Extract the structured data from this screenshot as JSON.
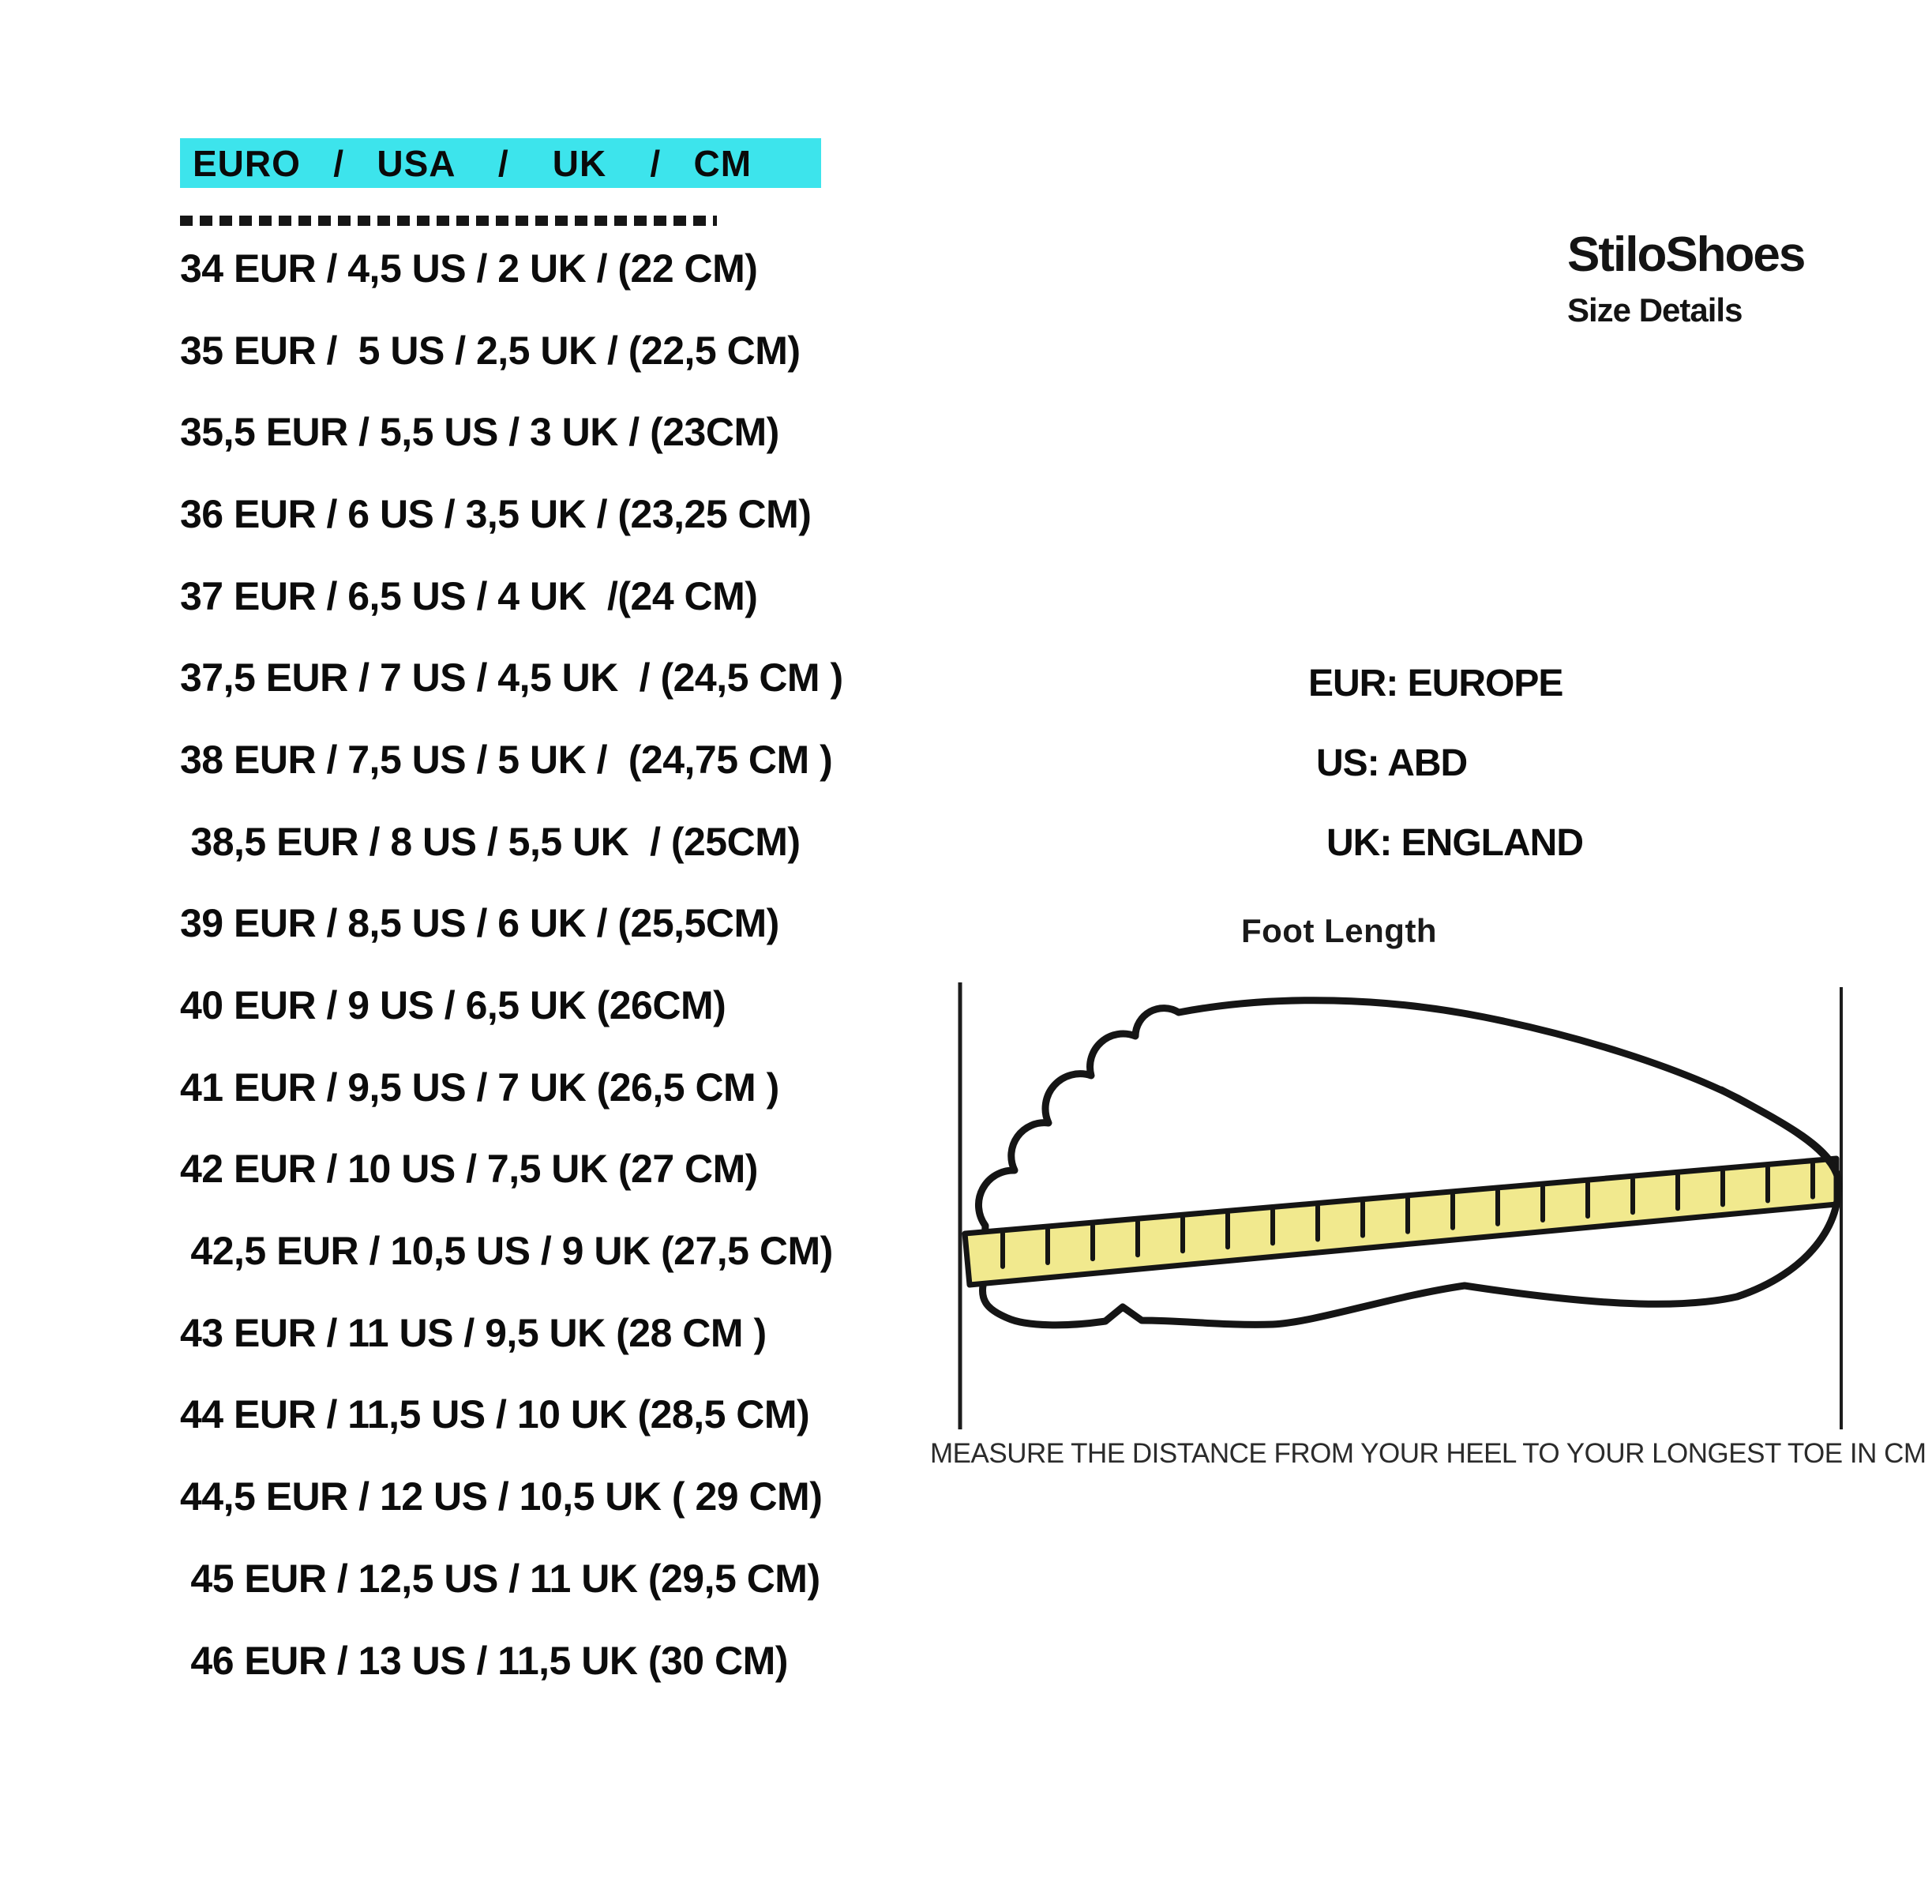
{
  "header": {
    "title": "EURO   /   USA    /    UK    /   CM",
    "highlight_color": "#3DE4EC"
  },
  "size_table": {
    "rows": [
      "34 EUR / 4,5 US / 2 UK / (22 CM)",
      "35 EUR /  5 US / 2,5 UK / (22,5 CM)",
      "35,5 EUR / 5,5 US / 3 UK / (23CM)",
      "36 EUR / 6 US / 3,5 UK / (23,25 CM)",
      "37 EUR / 6,5 US / 4 UK  /(24 CM)",
      "37,5 EUR / 7 US / 4,5 UK  / (24,5 CM )",
      "38 EUR / 7,5 US / 5 UK /  (24,75 CM )",
      " 38,5 EUR / 8 US / 5,5 UK  / (25CM)",
      "39 EUR / 8,5 US / 6 UK / (25,5CM)",
      "40 EUR / 9 US / 6,5 UK (26CM)",
      "41 EUR / 9,5 US / 7 UK (26,5 CM )",
      "42 EUR / 10 US / 7,5 UK (27 CM)",
      " 42,5 EUR / 10,5 US / 9 UK (27,5 CM)",
      "43 EUR / 11 US / 9,5 UK (28 CM )",
      "44 EUR / 11,5 US / 10 UK (28,5 CM)",
      "44,5 EUR / 12 US / 10,5 UK ( 29 CM)",
      " 45 EUR / 12,5 US / 11 UK (29,5 CM)",
      " 46 EUR / 13 US / 11,5 UK (30 CM)"
    ]
  },
  "brand": {
    "name": "StiloShoes",
    "subtitle": "Size Details"
  },
  "legend": {
    "items": [
      "EUR: EUROPE",
      "US: ABD",
      "UK: ENGLAND"
    ]
  },
  "diagram": {
    "label": "Foot Length",
    "caption": "MEASURE THE DISTANCE FROM YOUR HEEL TO YOUR LONGEST TOE IN CM",
    "ruler_color": "#F1E98E",
    "outline_color": "#151515"
  }
}
